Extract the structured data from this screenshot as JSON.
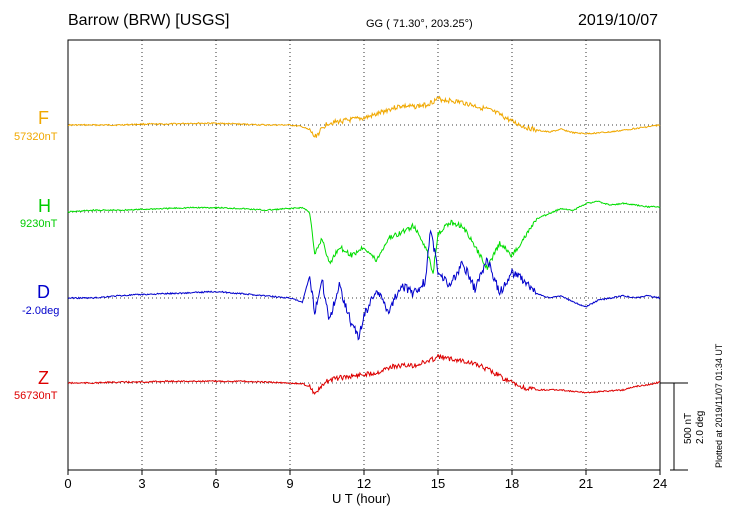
{
  "header": {
    "station": "Barrow (BRW)  [USGS]",
    "coords": "GG ( 71.30°, 203.25°)",
    "date": "2019/10/07"
  },
  "plotted_note": "Plotted at 2019/11/07 01:34 UT",
  "scale": {
    "line1": "500 nT",
    "line2": "2.0 deg"
  },
  "colors": {
    "F": "#f0a800",
    "H": "#00dd00",
    "D": "#0000cc",
    "Z": "#dd0000"
  },
  "chart_data": {
    "type": "line",
    "title": "Barrow (BRW)  [USGS]",
    "xlabel": "U T (hour)",
    "ylabel": "",
    "xlim": [
      0,
      24
    ],
    "xticks": [
      0,
      3,
      6,
      9,
      12,
      15,
      18,
      21,
      24
    ],
    "grid": true,
    "scale_bar": "500 nT / 2.0 deg",
    "series": [
      {
        "name": "F",
        "baseline_label": "57320nT",
        "color": "#f0a800",
        "unit": "nT",
        "baseline": 57320,
        "x": [
          0,
          1,
          2,
          3,
          4,
          5,
          6,
          7,
          8,
          9,
          9.5,
          9.8,
          10.0,
          10.2,
          10.5,
          11.0,
          11.5,
          12.0,
          12.5,
          13.0,
          13.5,
          14.0,
          14.5,
          15.0,
          15.5,
          16.0,
          16.5,
          17.0,
          17.5,
          18.0,
          18.5,
          19.0,
          19.5,
          20.0,
          20.5,
          21.0,
          21.5,
          22.0,
          22.5,
          23.0,
          23.5,
          24.0
        ],
        "y": [
          0,
          0,
          0,
          5,
          5,
          10,
          10,
          5,
          0,
          0,
          -10,
          -30,
          -70,
          -40,
          10,
          20,
          30,
          40,
          60,
          90,
          110,
          105,
          115,
          150,
          140,
          130,
          110,
          90,
          60,
          20,
          -10,
          -30,
          -40,
          -25,
          -45,
          -50,
          -45,
          -40,
          -30,
          -20,
          -10,
          0
        ]
      },
      {
        "name": "H",
        "baseline_label": "9230nT",
        "color": "#00dd00",
        "unit": "nT",
        "baseline": 9230,
        "x": [
          0,
          1,
          2,
          3,
          4,
          5,
          6,
          7,
          8,
          9,
          9.5,
          9.8,
          10.0,
          10.3,
          10.6,
          11.0,
          11.5,
          12.0,
          12.5,
          13.0,
          13.5,
          14.0,
          14.5,
          14.8,
          15.0,
          15.5,
          16.0,
          16.5,
          17.0,
          17.5,
          18.0,
          18.5,
          19.0,
          19.5,
          20.0,
          20.5,
          21.0,
          21.5,
          22.0,
          22.5,
          23.0,
          23.5,
          24.0
        ],
        "y": [
          0,
          10,
          10,
          15,
          20,
          25,
          25,
          20,
          10,
          20,
          25,
          0,
          -250,
          -150,
          -300,
          -200,
          -250,
          -200,
          -280,
          -150,
          -120,
          -80,
          -200,
          -350,
          -120,
          -60,
          -80,
          -200,
          -320,
          -180,
          -250,
          -150,
          -40,
          -10,
          20,
          10,
          50,
          60,
          40,
          50,
          40,
          30,
          30
        ]
      },
      {
        "name": "D",
        "baseline_label": "-2.0deg",
        "color": "#0000cc",
        "unit": "deg",
        "baseline": -2.0,
        "x": [
          0,
          1,
          2,
          3,
          4,
          5,
          6,
          7,
          8,
          9,
          9.5,
          9.8,
          10.0,
          10.3,
          10.6,
          11.0,
          11.5,
          11.8,
          12.0,
          12.5,
          13.0,
          13.5,
          14.0,
          14.5,
          14.7,
          15.0,
          15.5,
          16.0,
          16.5,
          17.0,
          17.5,
          18.0,
          18.5,
          19.0,
          19.5,
          20.0,
          20.5,
          21.0,
          21.5,
          22.0,
          22.5,
          23.0,
          23.5,
          24.0
        ],
        "y": [
          0,
          0,
          0.05,
          0.08,
          0.1,
          0.12,
          0.15,
          0.1,
          0.05,
          0,
          -0.1,
          0.5,
          -0.3,
          0.4,
          -0.5,
          0.3,
          -0.6,
          -0.9,
          -0.4,
          0.2,
          -0.3,
          0.3,
          0.1,
          0.4,
          1.6,
          0.6,
          0.3,
          0.8,
          0.2,
          0.9,
          0.1,
          0.6,
          0.4,
          0.1,
          0,
          0.05,
          -0.1,
          -0.2,
          -0.05,
          0,
          0.05,
          0,
          0.05,
          0
        ]
      },
      {
        "name": "Z",
        "baseline_label": "56730nT",
        "color": "#dd0000",
        "unit": "nT",
        "baseline": 56730,
        "x": [
          0,
          1,
          2,
          3,
          4,
          5,
          6,
          7,
          8,
          9,
          9.5,
          9.8,
          10.0,
          10.2,
          10.5,
          11.0,
          11.5,
          12.0,
          12.5,
          13.0,
          13.5,
          14.0,
          14.5,
          15.0,
          15.5,
          16.0,
          16.5,
          17.0,
          17.5,
          18.0,
          18.5,
          19.0,
          19.5,
          20.0,
          20.5,
          21.0,
          21.5,
          22.0,
          22.5,
          23.0,
          23.5,
          24.0
        ],
        "y": [
          0,
          0,
          5,
          5,
          10,
          10,
          10,
          10,
          5,
          0,
          -5,
          -20,
          -60,
          -35,
          10,
          30,
          40,
          50,
          60,
          90,
          100,
          100,
          120,
          150,
          140,
          130,
          110,
          80,
          40,
          0,
          -30,
          -40,
          -40,
          -40,
          -50,
          -55,
          -50,
          -45,
          -40,
          -20,
          -10,
          5
        ]
      }
    ]
  }
}
